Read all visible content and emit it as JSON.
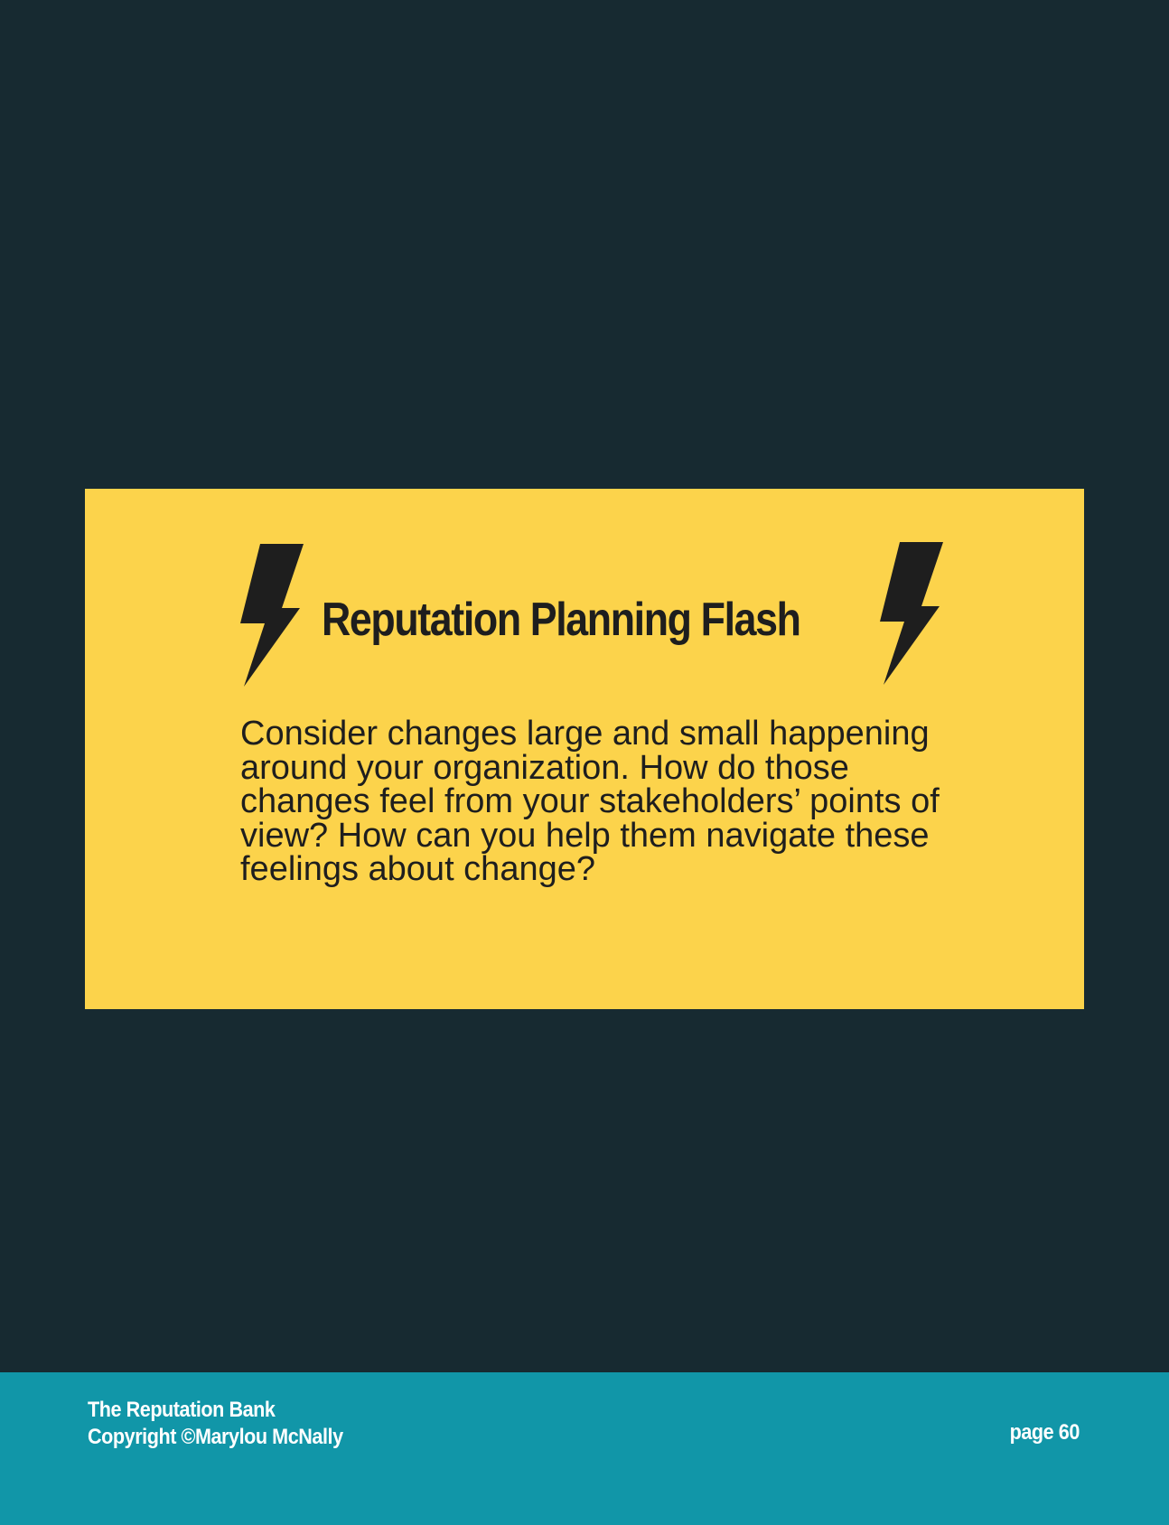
{
  "flash": {
    "title": "Reputation Planning Flash",
    "body": "Consider changes large and small happening around your organization. How do those changes feel from your stakeholders’ points of view? How can you help them navigate these feelings about change?",
    "icons": [
      "lightning-bolt",
      "lightning-bolt"
    ]
  },
  "footer": {
    "book_title": "The Reputation Bank",
    "copyright": "Copyright ©Marylou McNally",
    "page_label": "page 60"
  },
  "colors": {
    "background": "#172a31",
    "callout": "#fcd34b",
    "footer": "#1196a8",
    "text_dark": "#1e1e1e",
    "text_light": "#ffffff"
  }
}
